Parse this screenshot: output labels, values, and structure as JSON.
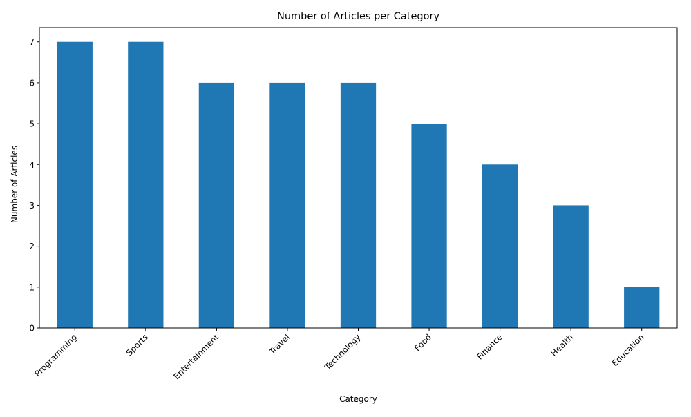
{
  "chart_data": {
    "type": "bar",
    "title": "Number of Articles per Category",
    "xlabel": "Category",
    "ylabel": "Number of Articles",
    "categories": [
      "Programming",
      "Sports",
      "Entertainment",
      "Travel",
      "Technology",
      "Food",
      "Finance",
      "Health",
      "Education"
    ],
    "values": [
      7,
      7,
      6,
      6,
      6,
      5,
      4,
      3,
      1
    ],
    "ylim": [
      0,
      7.35
    ],
    "yticks": [
      0,
      1,
      2,
      3,
      4,
      5,
      6,
      7
    ],
    "x_tick_rotation_deg": 45,
    "grid": false,
    "legend": "none",
    "bar_color": "#1f77b4"
  }
}
